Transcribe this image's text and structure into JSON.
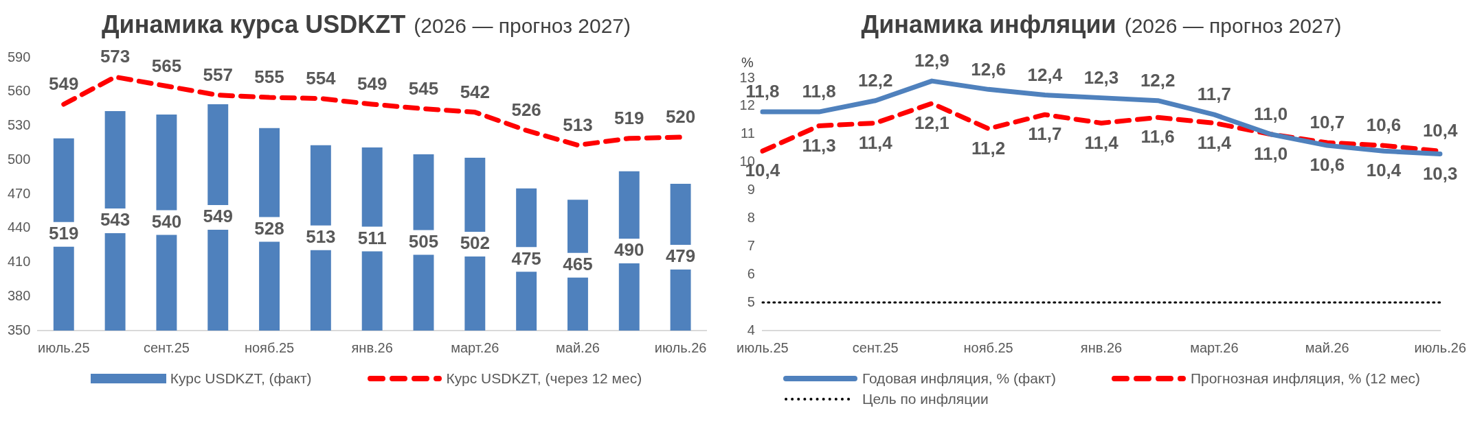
{
  "chart_data": [
    {
      "type": "bar",
      "title": "Динамика курса USDKZT",
      "subtitle": "(2026 — прогноз 2027)",
      "categories": [
        "июль.25",
        null,
        "сент.25",
        null,
        "нояб.25",
        null,
        "янв.26",
        null,
        "март.26",
        null,
        "май.26",
        null,
        "июль.26"
      ],
      "series": [
        {
          "name": "Курс USDKZT, (факт)",
          "type": "bar",
          "color": "#4f81bd",
          "values": [
            519,
            543,
            540,
            549,
            528,
            513,
            511,
            505,
            502,
            475,
            465,
            490,
            479
          ],
          "value_labels": [
            "519",
            "543",
            "540",
            "549",
            "528",
            "513",
            "511",
            "505",
            "502",
            "475",
            "465",
            "490",
            "479"
          ]
        },
        {
          "name": "Курс USDKZT, (через 12 мес)",
          "type": "line",
          "line_style": "dashed",
          "color": "#ff0000",
          "values": [
            549,
            573,
            565,
            557,
            555,
            554,
            549,
            545,
            542,
            526,
            513,
            519,
            520
          ],
          "value_labels": [
            "549",
            "573",
            "565",
            "557",
            "555",
            "554",
            "549",
            "545",
            "542",
            "526",
            "513",
            "519",
            "520"
          ]
        }
      ],
      "ylim": [
        350,
        590
      ],
      "yticks": [
        350,
        380,
        410,
        440,
        470,
        500,
        530,
        560,
        590
      ],
      "grid": false,
      "legend": "bottom",
      "marker": "none"
    },
    {
      "type": "line",
      "title": "Динамика инфляции",
      "subtitle": "(2026 — прогноз 2027)",
      "ylabel": "%",
      "categories": [
        "июль.25",
        null,
        "сент.25",
        null,
        "нояб.25",
        null,
        "янв.26",
        null,
        "март.26",
        null,
        "май.26",
        null,
        "июль.26"
      ],
      "series": [
        {
          "name": "Годовая инфляция, % (факт)",
          "line_style": "solid",
          "color": "#4f81bd",
          "values": [
            11.8,
            11.8,
            12.2,
            12.9,
            12.6,
            12.4,
            12.3,
            12.2,
            11.7,
            11.0,
            10.6,
            10.4,
            10.3
          ],
          "value_labels": [
            "11,8",
            "11,8",
            "12,2",
            "12,9",
            "12,6",
            "12,4",
            "12,3",
            "12,2",
            "11,7",
            "11,0",
            "10,6",
            "10,4",
            "10,3"
          ]
        },
        {
          "name": "Прогнозная инфляция, % (12 мес)",
          "line_style": "dashed",
          "color": "#ff0000",
          "values": [
            10.4,
            11.3,
            11.4,
            12.1,
            11.2,
            11.7,
            11.4,
            11.6,
            11.4,
            11.0,
            10.7,
            10.6,
            10.4
          ],
          "value_labels": [
            "10,4",
            "11,3",
            "11,4",
            "12,1",
            "11,2",
            "11,7",
            "11,4",
            "11,6",
            "11,4",
            "11,0",
            "10,7",
            "10,6",
            "10,4"
          ]
        },
        {
          "name": "Цель по инфляции",
          "line_style": "dotted",
          "color": "#000000",
          "values": [
            5,
            5,
            5,
            5,
            5,
            5,
            5,
            5,
            5,
            5,
            5,
            5,
            5
          ]
        }
      ],
      "ylim": [
        4,
        13
      ],
      "yticks": [
        4,
        5,
        6,
        7,
        8,
        9,
        10,
        11,
        12,
        13
      ],
      "grid": false,
      "legend": "bottom",
      "marker": "none"
    }
  ]
}
